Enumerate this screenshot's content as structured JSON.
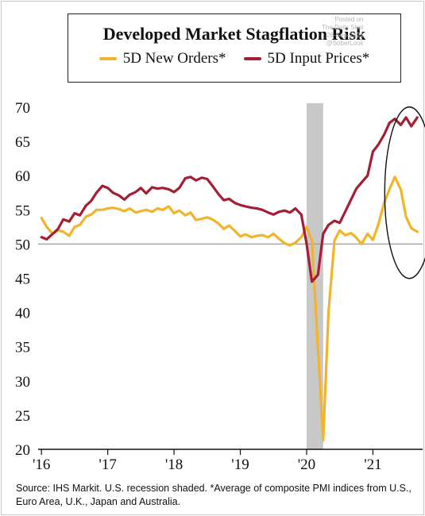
{
  "watermark": {
    "line1": "Posted on",
    "line2": "The Daily Shot",
    "line3": "28-Sep-2021",
    "line4": "@SoberLook"
  },
  "source": "Source:  IHS Markit. U.S. recession shaded. *Average of composite PMI indices from U.S., Euro Area, U.K., Japan and Australia.",
  "colors": {
    "new_orders": "#f2b42a",
    "input_prices": "#a41e35",
    "recession": "#c8c8c8",
    "ellipse": "#111111"
  },
  "chart_data": {
    "type": "line",
    "title": "Developed Market Stagflation Risk",
    "xlabel": "",
    "ylabel": "",
    "ylim": [
      20,
      70
    ],
    "yticks": [
      20,
      25,
      30,
      35,
      40,
      45,
      50,
      55,
      60,
      65,
      70
    ],
    "xticks": [
      {
        "x": 2016.0,
        "label": "'16"
      },
      {
        "x": 2017.0,
        "label": "'17"
      },
      {
        "x": 2018.0,
        "label": "'18"
      },
      {
        "x": 2019.0,
        "label": "'19"
      },
      {
        "x": 2020.0,
        "label": "'20"
      },
      {
        "x": 2021.0,
        "label": "'21"
      }
    ],
    "xlim": [
      2015.95,
      2021.75
    ],
    "reference_line": 50,
    "recession": [
      2020.0,
      2020.25
    ],
    "highlight_ellipse": "around 2021 Q2–Q3 values",
    "series": [
      {
        "name": "5D New Orders*",
        "color": "#f2b42a",
        "x": [
          2016.0,
          2016.08,
          2016.17,
          2016.25,
          2016.33,
          2016.42,
          2016.5,
          2016.58,
          2016.67,
          2016.75,
          2016.83,
          2016.92,
          2017.0,
          2017.08,
          2017.17,
          2017.25,
          2017.33,
          2017.42,
          2017.5,
          2017.58,
          2017.67,
          2017.75,
          2017.83,
          2017.92,
          2018.0,
          2018.08,
          2018.17,
          2018.25,
          2018.33,
          2018.42,
          2018.5,
          2018.58,
          2018.67,
          2018.75,
          2018.83,
          2018.92,
          2019.0,
          2019.08,
          2019.17,
          2019.25,
          2019.33,
          2019.42,
          2019.5,
          2019.58,
          2019.67,
          2019.75,
          2019.83,
          2019.92,
          2020.0,
          2020.08,
          2020.17,
          2020.25,
          2020.33,
          2020.42,
          2020.5,
          2020.58,
          2020.67,
          2020.75,
          2020.83,
          2020.92,
          2021.0,
          2021.08,
          2021.17,
          2021.25,
          2021.33,
          2021.42,
          2021.5,
          2021.58,
          2021.67
        ],
        "values": [
          53.8,
          52.5,
          51.5,
          52.0,
          51.8,
          51.2,
          52.5,
          52.8,
          54.0,
          54.3,
          55.0,
          55.0,
          55.2,
          55.3,
          55.1,
          54.8,
          55.2,
          54.6,
          54.8,
          55.0,
          54.7,
          55.2,
          55.0,
          55.5,
          54.5,
          54.9,
          54.2,
          54.6,
          53.5,
          53.7,
          53.9,
          53.6,
          53.0,
          52.2,
          52.7,
          51.9,
          51.1,
          51.4,
          51.0,
          51.2,
          51.3,
          51.0,
          51.5,
          50.8,
          50.1,
          49.8,
          50.2,
          51.0,
          52.5,
          50.5,
          35.0,
          21.3,
          40.0,
          50.5,
          52.0,
          51.3,
          51.6,
          50.9,
          50.0,
          51.5,
          50.6,
          52.8,
          56.0,
          58.0,
          59.8,
          58.0,
          54.0,
          52.3,
          51.8
        ]
      },
      {
        "name": "5D Input Prices*",
        "color": "#a41e35",
        "x": [
          2016.0,
          2016.08,
          2016.17,
          2016.25,
          2016.33,
          2016.42,
          2016.5,
          2016.58,
          2016.67,
          2016.75,
          2016.83,
          2016.92,
          2017.0,
          2017.08,
          2017.17,
          2017.25,
          2017.33,
          2017.42,
          2017.5,
          2017.58,
          2017.67,
          2017.75,
          2017.83,
          2017.92,
          2018.0,
          2018.08,
          2018.17,
          2018.25,
          2018.33,
          2018.42,
          2018.5,
          2018.58,
          2018.67,
          2018.75,
          2018.83,
          2018.92,
          2019.0,
          2019.08,
          2019.17,
          2019.25,
          2019.33,
          2019.42,
          2019.5,
          2019.58,
          2019.67,
          2019.75,
          2019.83,
          2019.92,
          2020.0,
          2020.08,
          2020.17,
          2020.25,
          2020.33,
          2020.42,
          2020.5,
          2020.58,
          2020.67,
          2020.75,
          2020.83,
          2020.92,
          2021.0,
          2021.08,
          2021.17,
          2021.25,
          2021.33,
          2021.42,
          2021.5,
          2021.58,
          2021.67
        ],
        "values": [
          51.0,
          50.7,
          51.5,
          52.2,
          53.6,
          53.3,
          54.5,
          54.2,
          55.6,
          56.3,
          57.5,
          58.5,
          58.2,
          57.5,
          57.1,
          56.5,
          57.2,
          57.6,
          58.2,
          57.4,
          58.3,
          58.1,
          58.2,
          58.0,
          57.6,
          58.2,
          59.6,
          59.8,
          59.3,
          59.7,
          59.5,
          58.5,
          57.3,
          56.4,
          56.6,
          56.0,
          55.7,
          55.5,
          55.3,
          55.2,
          55.0,
          54.6,
          54.3,
          54.7,
          54.9,
          54.6,
          55.2,
          54.3,
          50.0,
          44.5,
          45.5,
          51.5,
          52.8,
          53.4,
          53.1,
          54.7,
          56.5,
          58.1,
          59.0,
          60.0,
          63.5,
          64.5,
          66.0,
          67.7,
          68.3,
          67.4,
          68.5,
          67.2,
          68.5
        ]
      }
    ]
  }
}
